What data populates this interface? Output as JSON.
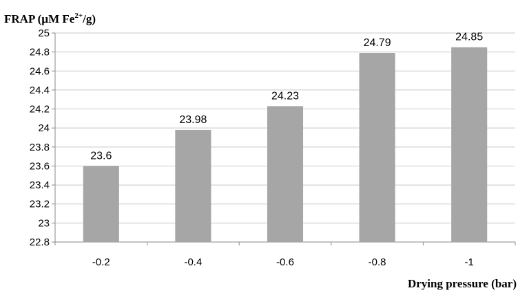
{
  "chart_data": {
    "type": "bar",
    "categories": [
      "-0.2",
      "-0.4",
      "-0.6",
      "-0.8",
      "-1"
    ],
    "values": [
      23.6,
      23.98,
      24.23,
      24.79,
      24.85
    ],
    "data_labels": [
      "23.6",
      "23.98",
      "24.23",
      "24.79",
      "24.85"
    ],
    "ylabel_main": "FRAP (µM Fe",
    "ylabel_sup": "2+",
    "ylabel_tail": "/g)",
    "xlabel": "Drying pressure (bar)",
    "ylim": [
      22.8,
      25
    ],
    "yticks": [
      "22.8",
      "23",
      "23.2",
      "23.4",
      "23.6",
      "23.8",
      "24",
      "24.2",
      "24.4",
      "24.6",
      "24.8",
      "25"
    ],
    "grid": true,
    "bar_color": "#a6a6a6",
    "grid_color": "#c8c8c8"
  }
}
